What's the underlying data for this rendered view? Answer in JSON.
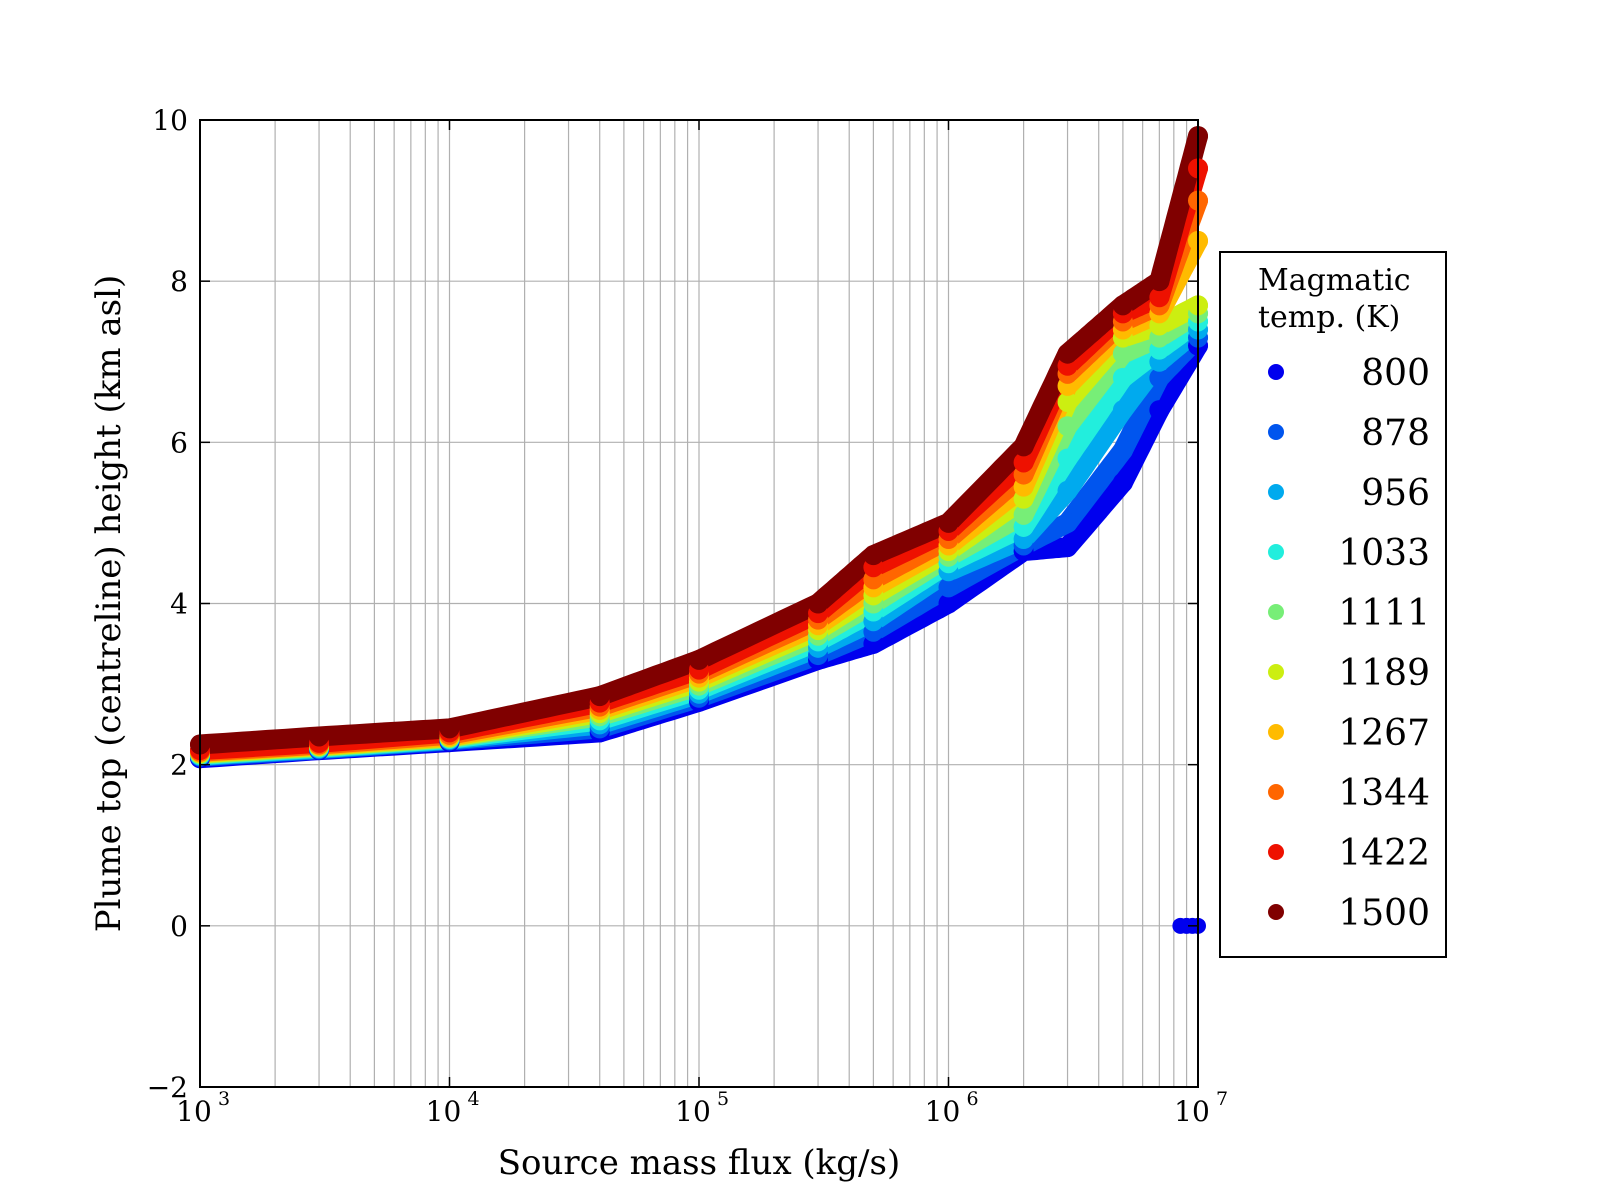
{
  "chart_data": {
    "type": "scatter",
    "title": "",
    "xlabel": "Source mass flux (kg/s)",
    "ylabel": "Plume top (centreline) height (km asl)",
    "xscale": "log",
    "xlim": [
      1000,
      10000000
    ],
    "ylim": [
      -2,
      10
    ],
    "grid": true,
    "x_tick_labels": [
      {
        "base": "10",
        "exp": "3"
      },
      {
        "base": "10",
        "exp": "4"
      },
      {
        "base": "10",
        "exp": "5"
      },
      {
        "base": "10",
        "exp": "6"
      },
      {
        "base": "10",
        "exp": "7"
      }
    ],
    "y_ticks": [
      -2,
      0,
      2,
      4,
      6,
      8,
      10
    ],
    "y_tick_labels": [
      "−2",
      "0",
      "2",
      "4",
      "6",
      "8",
      "10"
    ],
    "legend": {
      "title_line1": "Magmatic",
      "title_line2": "temp. (K)",
      "placement": "right-outside"
    },
    "series": [
      {
        "name": "800",
        "color": "#0000ee",
        "x": [
          1000,
          3000,
          10000,
          40000,
          100000,
          300000,
          500000,
          1000000,
          2000000,
          3000000,
          5000000,
          7000000,
          10000000
        ],
        "y": [
          2.08,
          2.18,
          2.28,
          2.4,
          2.78,
          3.3,
          3.5,
          4.0,
          4.65,
          4.7,
          5.5,
          6.4,
          7.2
        ]
      },
      {
        "name": "878",
        "color": "#0055ee",
        "x": [
          1000,
          3000,
          10000,
          40000,
          100000,
          300000,
          500000,
          1000000,
          2000000,
          3000000,
          5000000,
          7000000,
          10000000
        ],
        "y": [
          2.1,
          2.19,
          2.3,
          2.45,
          2.83,
          3.36,
          3.65,
          4.2,
          4.72,
          5.0,
          5.9,
          6.8,
          7.3
        ]
      },
      {
        "name": "956",
        "color": "#00aaee",
        "x": [
          1000,
          3000,
          10000,
          40000,
          100000,
          300000,
          500000,
          1000000,
          2000000,
          3000000,
          5000000,
          7000000,
          10000000
        ],
        "y": [
          2.11,
          2.2,
          2.31,
          2.5,
          2.88,
          3.45,
          3.78,
          4.4,
          4.8,
          5.4,
          6.4,
          7.0,
          7.4
        ]
      },
      {
        "name": "1033",
        "color": "#22eedd",
        "x": [
          1000,
          3000,
          10000,
          40000,
          100000,
          300000,
          500000,
          1000000,
          2000000,
          3000000,
          5000000,
          7000000,
          10000000
        ],
        "y": [
          2.12,
          2.21,
          2.32,
          2.55,
          2.93,
          3.53,
          3.9,
          4.5,
          4.95,
          5.8,
          6.8,
          7.15,
          7.5
        ]
      },
      {
        "name": "1111",
        "color": "#77ee77",
        "x": [
          1000,
          3000,
          10000,
          40000,
          100000,
          300000,
          500000,
          1000000,
          2000000,
          3000000,
          5000000,
          7000000,
          10000000
        ],
        "y": [
          2.13,
          2.22,
          2.33,
          2.6,
          2.98,
          3.6,
          4.0,
          4.58,
          5.1,
          6.2,
          7.1,
          7.3,
          7.6
        ]
      },
      {
        "name": "1189",
        "color": "#ccee11",
        "x": [
          1000,
          3000,
          10000,
          40000,
          100000,
          300000,
          500000,
          1000000,
          2000000,
          3000000,
          5000000,
          7000000,
          10000000
        ],
        "y": [
          2.14,
          2.23,
          2.34,
          2.64,
          3.03,
          3.67,
          4.1,
          4.65,
          5.3,
          6.5,
          7.3,
          7.45,
          7.7
        ]
      },
      {
        "name": "1267",
        "color": "#ffbb00",
        "x": [
          1000,
          3000,
          10000,
          40000,
          100000,
          300000,
          500000,
          1000000,
          2000000,
          3000000,
          5000000,
          7000000,
          10000000
        ],
        "y": [
          2.15,
          2.24,
          2.35,
          2.68,
          3.08,
          3.73,
          4.2,
          4.72,
          5.45,
          6.7,
          7.4,
          7.6,
          8.5
        ]
      },
      {
        "name": "1344",
        "color": "#ff6600",
        "x": [
          1000,
          3000,
          10000,
          40000,
          100000,
          300000,
          500000,
          1000000,
          2000000,
          3000000,
          5000000,
          7000000,
          10000000
        ],
        "y": [
          2.16,
          2.25,
          2.37,
          2.72,
          3.13,
          3.8,
          4.3,
          4.8,
          5.6,
          6.85,
          7.5,
          7.7,
          9.0
        ]
      },
      {
        "name": "1422",
        "color": "#ee1100",
        "x": [
          1000,
          3000,
          10000,
          40000,
          100000,
          300000,
          500000,
          1000000,
          2000000,
          3000000,
          5000000,
          7000000,
          10000000
        ],
        "y": [
          2.18,
          2.27,
          2.4,
          2.77,
          3.18,
          3.88,
          4.45,
          4.9,
          5.75,
          6.95,
          7.6,
          7.8,
          9.4
        ]
      },
      {
        "name": "1500",
        "color": "#800000",
        "x": [
          1000,
          3000,
          10000,
          40000,
          100000,
          300000,
          500000,
          1000000,
          2000000,
          3000000,
          5000000,
          7000000,
          10000000
        ],
        "y": [
          2.25,
          2.35,
          2.45,
          2.85,
          3.3,
          4.0,
          4.6,
          5.0,
          5.95,
          7.1,
          7.7,
          8.0,
          9.8
        ]
      }
    ],
    "outliers": {
      "name": "800",
      "color": "#0000ee",
      "x": [
        8500000,
        9000000,
        9500000,
        10000000
      ],
      "y": [
        0,
        0,
        0,
        0
      ]
    }
  }
}
